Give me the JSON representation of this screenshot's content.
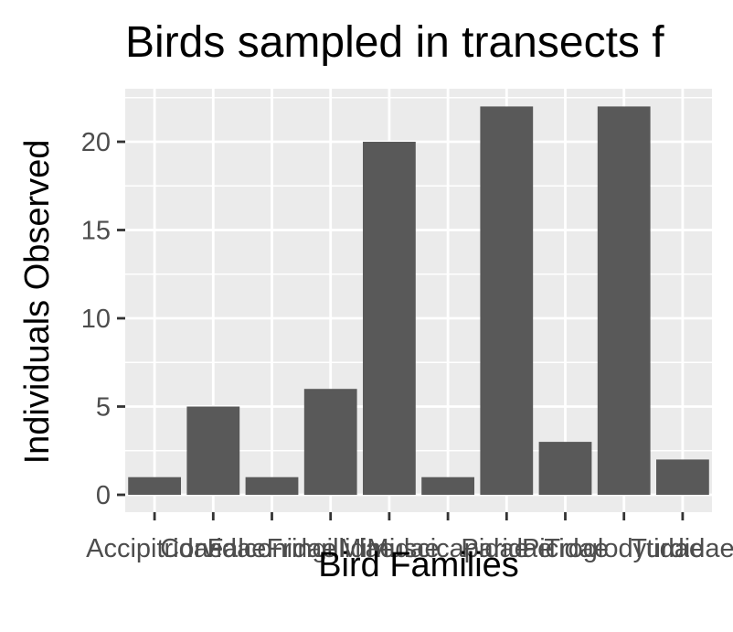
{
  "chart_data": {
    "type": "bar",
    "title": "Birds sampled in transects f",
    "xlabel": "Bird Families",
    "ylabel": "Individuals Observed",
    "categories": [
      "Accipitridae",
      "Corvidae",
      "Falconidae",
      "Fringillidae",
      "Mimidae",
      "Muscicapidae",
      "Paridae",
      "Picidae",
      "Troglodytidae",
      "Turdidae"
    ],
    "values": [
      1,
      5,
      1,
      6,
      20,
      1,
      22,
      3,
      22,
      2
    ],
    "ylim": [
      0,
      23.1
    ],
    "yticks": [
      0,
      5,
      10,
      15,
      20
    ],
    "grid": true,
    "colors": {
      "panel": "#ebebeb",
      "grid": "#ffffff",
      "bar": "#595959",
      "tick": "#333333",
      "tick_text": "#4d4d4d"
    }
  }
}
